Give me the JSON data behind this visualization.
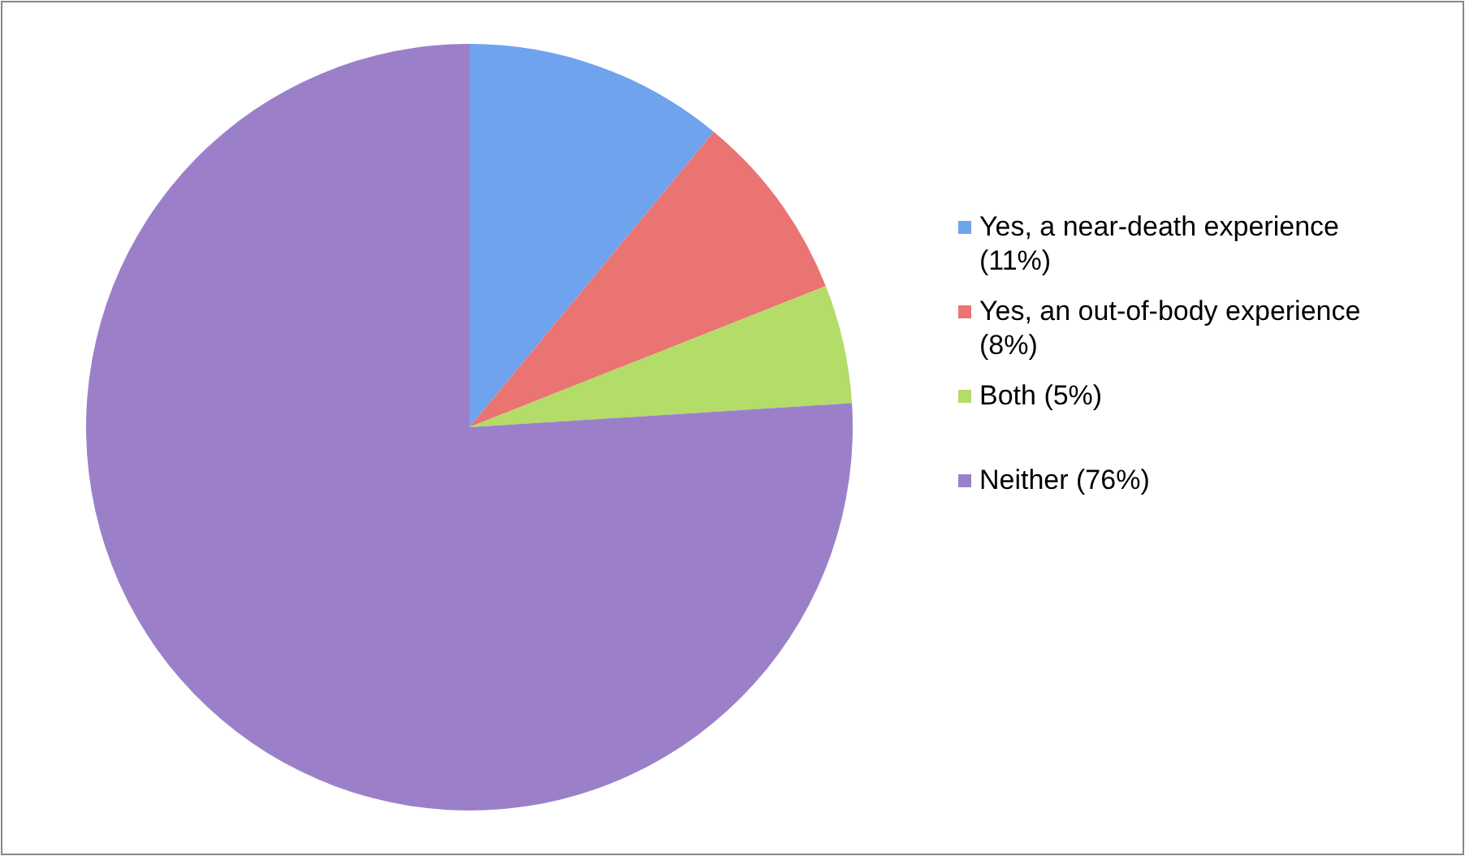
{
  "chart_data": {
    "type": "pie",
    "categories": [
      "Yes, a near-death experience (11%)",
      "Yes, an out-of-body experience (8%)",
      "Both (5%)",
      "Neither (76%)"
    ],
    "values": [
      11,
      8,
      5,
      76
    ],
    "colors": [
      "#6fa3ee",
      "#ea7472",
      "#b3dc68",
      "#9b80c9"
    ],
    "legend": "right"
  }
}
